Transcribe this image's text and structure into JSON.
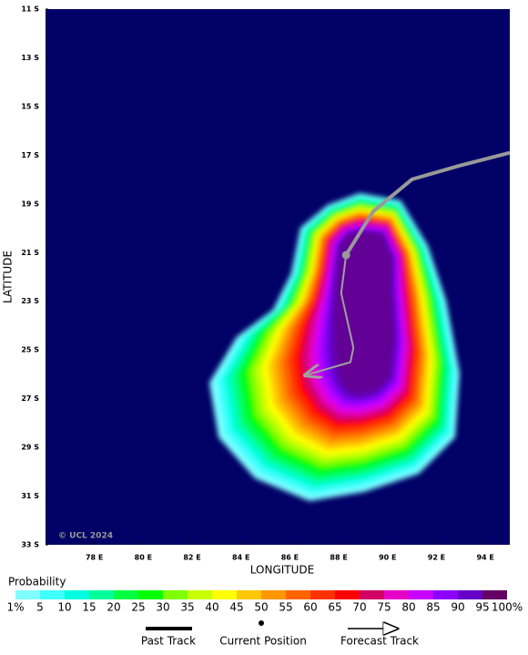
{
  "map": {
    "xlim": [
      76,
      95
    ],
    "ylim": [
      -33,
      -11
    ],
    "xticks": [
      {
        "value": 78,
        "label": "78 E"
      },
      {
        "value": 80,
        "label": "80 E"
      },
      {
        "value": 82,
        "label": "82 E"
      },
      {
        "value": 84,
        "label": "84 E"
      },
      {
        "value": 86,
        "label": "86 E"
      },
      {
        "value": 88,
        "label": "88 E"
      },
      {
        "value": 90,
        "label": "90 E"
      },
      {
        "value": 92,
        "label": "92 E"
      },
      {
        "value": 94,
        "label": "94 E"
      }
    ],
    "yticks": [
      {
        "value": -11,
        "label": "11 S"
      },
      {
        "value": -13,
        "label": "13 S"
      },
      {
        "value": -15,
        "label": "15 S"
      },
      {
        "value": -17,
        "label": "17 S"
      },
      {
        "value": -19,
        "label": "19 S"
      },
      {
        "value": -21,
        "label": "21 S"
      },
      {
        "value": -23,
        "label": "23 S"
      },
      {
        "value": -25,
        "label": "25 S"
      },
      {
        "value": -27,
        "label": "27 S"
      },
      {
        "value": -29,
        "label": "29 S"
      },
      {
        "value": -31,
        "label": "31 S"
      },
      {
        "value": -33,
        "label": "33 S"
      }
    ],
    "xlabel": "LONGITUDE",
    "ylabel": "LATITUDE",
    "copyright": "© UCL 2024",
    "background": "#000066",
    "past_track": {
      "color": "#999999",
      "lon": [
        95.0,
        92.95,
        91.0,
        89.41,
        88.3
      ],
      "lat": [
        -16.9,
        -17.43,
        -17.99,
        -19.31,
        -21.1
      ]
    },
    "current_position": {
      "lon": 88.3,
      "lat": -21.1
    },
    "forecast_track": {
      "color": "#a0a0a0",
      "lon": [
        88.3,
        88.1,
        88.6,
        88.48,
        86.62
      ],
      "lat": [
        -21.1,
        -22.67,
        -24.9,
        -25.5,
        -26.04
      ]
    }
  },
  "legend": {
    "title": "Probability",
    "labels": [
      "1%",
      "5",
      "10",
      "15",
      "20",
      "25",
      "30",
      "35",
      "40",
      "45",
      "50",
      "55",
      "60",
      "65",
      "70",
      "75",
      "80",
      "85",
      "90",
      "95",
      "100%"
    ],
    "colors": [
      "#80ffff",
      "#40ffff",
      "#00ffe0",
      "#00ff99",
      "#00ff40",
      "#00ff00",
      "#80ff00",
      "#c8ff00",
      "#ffff00",
      "#ffc800",
      "#ff9600",
      "#ff6400",
      "#ff3200",
      "#ff0000",
      "#d20064",
      "#e600c8",
      "#c800ff",
      "#8c00ff",
      "#6400c8",
      "#640096"
    ],
    "last_color": "#640064",
    "items": [
      "Past Track",
      "Current Position",
      "Forecast Track"
    ]
  }
}
